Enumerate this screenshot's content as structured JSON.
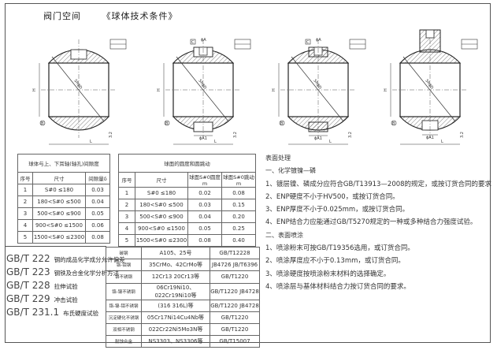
{
  "header": {
    "left": "阀门空间",
    "right": "《球体技术条件》"
  },
  "drawing_labels": {
    "sphere": "SRϕD",
    "height": "H",
    "length": "L",
    "stem": "ϕA",
    "stem_bottom": "ϕA1",
    "datum_b": "B",
    "datum_c": "C",
    "roughness": "3.2"
  },
  "table_clearance": {
    "title": "球体与上、下耳轴(轴孔)间隙度",
    "headers": [
      "序号",
      "尺寸",
      "间隙量δ"
    ],
    "rows": [
      [
        "1",
        "S#0 ≤180",
        "0.03"
      ],
      [
        "2",
        "180<S#0 ≤500",
        "0.04"
      ],
      [
        "3",
        "500<S#0 ≤900",
        "0.05"
      ],
      [
        "4",
        "900<S#0 ≤1500",
        "0.06"
      ],
      [
        "5",
        "1500<S#0 ≤2300",
        "0.08"
      ]
    ]
  },
  "table_roundness": {
    "title": "球面的圆度和圆跳动",
    "headers": [
      "序号",
      "尺寸",
      "球面S#0圆度m",
      "球面S#0跳动m"
    ],
    "rows": [
      [
        "1",
        "S#0 ≤180",
        "0.02",
        "0.08"
      ],
      [
        "2",
        "180<S#0 ≤500",
        "0.03",
        "0.15"
      ],
      [
        "3",
        "500<S#0 ≤900",
        "0.04",
        "0.20"
      ],
      [
        "4",
        "900<S#0 ≤1500",
        "0.05",
        "0.25"
      ],
      [
        "5",
        "1500<S#0 ≤2300",
        "0.08",
        "0.40"
      ]
    ]
  },
  "standards": [
    {
      "code": "GB/T 222",
      "name": "钢的成品化学成分允许偏差"
    },
    {
      "code": "GB/T 223",
      "name": "钢铁及合金化学分析方法"
    },
    {
      "code": "GB/T 228",
      "name": "拉伸试验"
    },
    {
      "code": "GB/T 229",
      "name": "冲击试验"
    },
    {
      "code": "GB/T 231.1",
      "name": "布氏硬度试验"
    }
  ],
  "materials": [
    [
      "碳钢",
      "A105、25号",
      "GB/T12228"
    ],
    [
      "铬-钼钢",
      "35CrMo、42CrMo等",
      "JB4726  JB/T6396"
    ],
    [
      "铬不锈钢",
      "12Cr13  20Cr13等",
      "GB/T1220"
    ],
    [
      "铬-镍不锈钢",
      "06Cr19Ni10、022Cr19Ni10等",
      "GB/T1220  JB4728"
    ],
    [
      "铬-镍-钼不锈钢",
      "(316  316L)等",
      "GB/T1220  JB4728"
    ],
    [
      "沉淀硬化不锈钢",
      "05Cr17Ni14Cu4Nb等",
      "GB/T1220"
    ],
    [
      "双相不锈钢",
      "022Cr22Ni5Mo3N等",
      "GB/T1220"
    ],
    [
      "耐蚀合金",
      "NS3303、NS3306等",
      "GB/T15007"
    ]
  ],
  "notes": [
    "表面处理",
    "一、化学镀镍—磷",
    "1、镀层镍、磷成分应符合GB/T13913—2008的规定，或按订货合同的要求",
    "2、ENP硬度不小于HV500，或按订货合同。",
    "3、ENP厚度不小于0.025mm，或按订货合同。",
    "4、ENP结合力应能通过GB/T5270规定的一种或多种结合力强度试验。",
    "二、表面喷涂",
    "1、喷涂粉末可按GB/T19356选用，或订货合同。",
    "2、喷涂厚度应不小于0.13mm，或订货合同。",
    "3、喷涂硬度按喷涂粉末材料的选择确定。",
    "4、喷涂层与基体材料结合力按订货合同的要求。"
  ]
}
